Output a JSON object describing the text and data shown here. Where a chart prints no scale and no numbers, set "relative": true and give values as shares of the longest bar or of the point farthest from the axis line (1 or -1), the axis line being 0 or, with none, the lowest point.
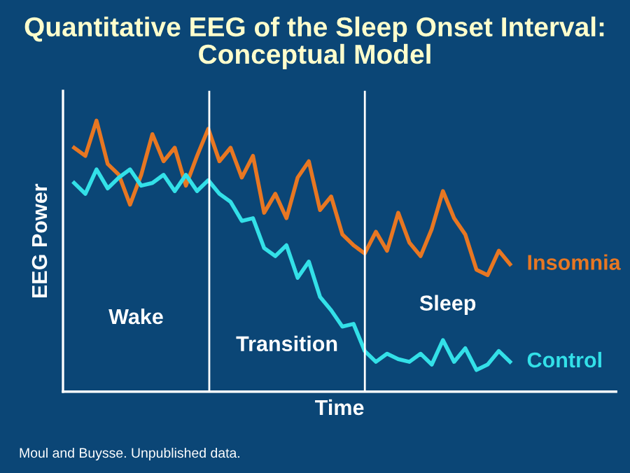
{
  "chart_data": {
    "type": "line",
    "title": "Quantitative EEG of the Sleep Onset Interval:\nConceptual Model",
    "xlabel": "Time",
    "ylabel": "EEG Power",
    "relative": true,
    "tick_labels": false,
    "legend": false,
    "marker": "none",
    "line_style": "solid",
    "categories": [
      null,
      null,
      null,
      null,
      null,
      null,
      null,
      null,
      null,
      null,
      null,
      null,
      null,
      null,
      null,
      null,
      null,
      null,
      null,
      null,
      null,
      null,
      null,
      null,
      null,
      null,
      null,
      null,
      null,
      null,
      null,
      null,
      null,
      null,
      null,
      null,
      null,
      null,
      null,
      null
    ],
    "annotations": [
      "Wake",
      "Transition",
      "Sleep",
      "Moul and Buysse. Unpublished data."
    ],
    "series": [
      {
        "name": "Insomnia",
        "color": "#e87722",
        "values": [
          0.9,
          0.87,
          1.0,
          0.84,
          0.8,
          0.69,
          0.8,
          0.95,
          0.85,
          0.9,
          0.76,
          0.87,
          0.97,
          0.85,
          0.9,
          0.79,
          0.87,
          0.66,
          0.73,
          0.64,
          0.79,
          0.85,
          0.67,
          0.72,
          0.58,
          0.54,
          0.51,
          0.59,
          0.52,
          0.66,
          0.55,
          0.5,
          0.6,
          0.74,
          0.64,
          0.58,
          0.45,
          0.43,
          0.52,
          0.47
        ]
      },
      {
        "name": "Control",
        "color": "#33e0e8",
        "values": [
          0.77,
          0.73,
          0.82,
          0.75,
          0.79,
          0.82,
          0.76,
          0.77,
          0.8,
          0.74,
          0.8,
          0.74,
          0.78,
          0.73,
          0.7,
          0.63,
          0.64,
          0.53,
          0.5,
          0.54,
          0.42,
          0.48,
          0.35,
          0.3,
          0.24,
          0.25,
          0.15,
          0.11,
          0.14,
          0.12,
          0.11,
          0.14,
          0.1,
          0.19,
          0.11,
          0.16,
          0.08,
          0.1,
          0.15,
          0.11
        ]
      }
    ]
  }
}
